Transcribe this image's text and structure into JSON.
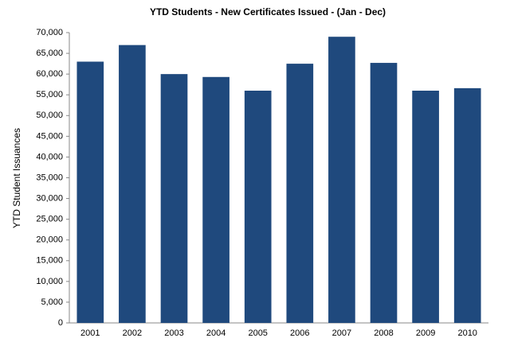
{
  "chart_data": {
    "type": "bar",
    "title": "YTD Students - New Certificates  Issued - (Jan - Dec)",
    "y_label": "YTD Student Issuances",
    "categories": [
      "2001",
      "2002",
      "2003",
      "2004",
      "2005",
      "2006",
      "2007",
      "2008",
      "2009",
      "2010"
    ],
    "values": [
      63000,
      67000,
      60000,
      59300,
      56000,
      62500,
      69000,
      62700,
      56000,
      56600
    ],
    "color": "#1f497d",
    "ylim": [
      0,
      70000
    ],
    "yticks": [
      0,
      {
        "value": 5000,
        "label": "5,000"
      },
      {
        "value": 10000,
        "label": "10,000"
      },
      {
        "value": 15000,
        "label": "15,000"
      },
      {
        "value": 20000,
        "label": "20,000"
      },
      {
        "value": 25000,
        "label": "25,000"
      },
      {
        "value": 30000,
        "label": "30,000"
      },
      {
        "value": 35000,
        "label": "35,000"
      },
      {
        "value": 40000,
        "label": "40,000"
      },
      {
        "value": 45000,
        "label": "45,000"
      },
      {
        "value": 50000,
        "label": "50,000"
      },
      {
        "value": 55000,
        "label": "55,000"
      },
      {
        "value": 60000,
        "label": "60,000"
      },
      {
        "value": 65000,
        "label": "65,000"
      },
      {
        "value": 70000,
        "label": "70,000"
      }
    ],
    "grid": false
  }
}
